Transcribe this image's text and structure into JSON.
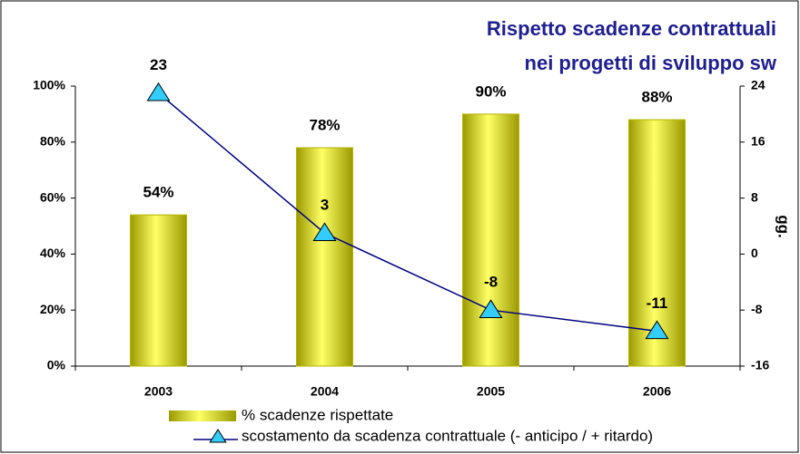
{
  "chart_data": {
    "type": "bar-line",
    "title": [
      "Rispetto scadenze contrattuali",
      "nei progetti di sviluppo sw"
    ],
    "categories": [
      "2003",
      "2004",
      "2005",
      "2006"
    ],
    "series": [
      {
        "name": "% scadenze rispettate",
        "type": "bar",
        "color": "#d4d400",
        "values": [
          54,
          78,
          90,
          88
        ],
        "value_labels": [
          "54%",
          "78%",
          "90%",
          "88%"
        ]
      },
      {
        "name": "scostamento da scadenza contrattuale (- anticipo / + ritardo)",
        "type": "line",
        "axis": "y2",
        "color": "#000080",
        "marker_color": "#33ccff",
        "values": [
          23,
          3,
          -8,
          -11
        ]
      }
    ],
    "ylim": [
      0,
      100
    ],
    "yticks": [
      {
        "value": 0,
        "label": "0%"
      },
      {
        "value": 20,
        "label": "20%"
      },
      {
        "value": 40,
        "label": "40%"
      },
      {
        "value": 60,
        "label": "60%"
      },
      {
        "value": 80,
        "label": "80%"
      },
      {
        "value": 100,
        "label": "100%"
      }
    ],
    "y2lim": [
      -16,
      24
    ],
    "y2ticks": [
      -16,
      -8,
      0,
      8,
      16,
      24
    ],
    "y2label": "gg."
  }
}
